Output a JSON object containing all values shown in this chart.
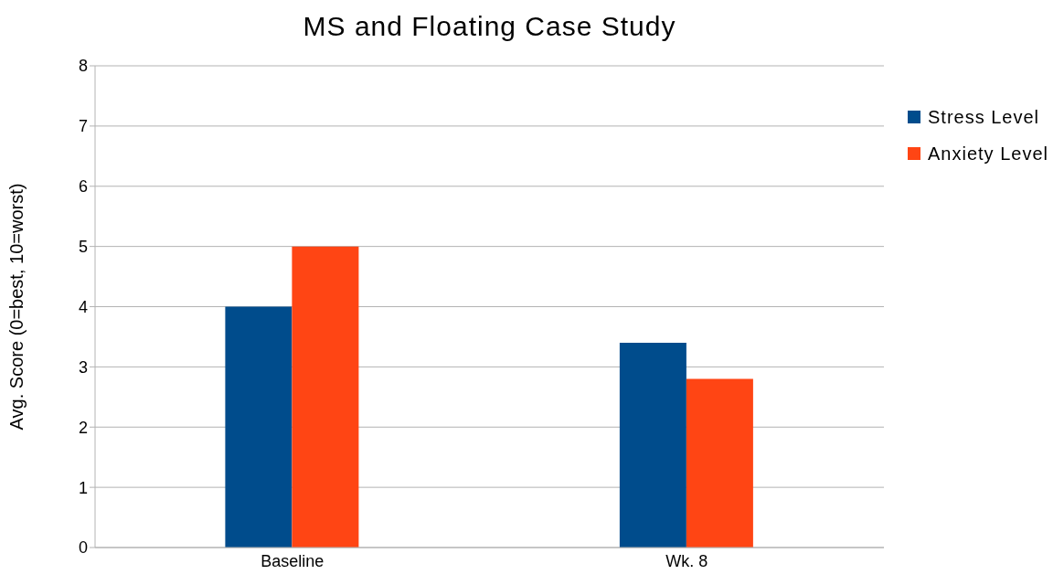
{
  "chart_data": {
    "type": "bar",
    "title": "MS and Floating Case Study",
    "ylabel": "Avg. Score (0=best, 10=worst)",
    "categories": [
      "Baseline",
      "Wk. 8"
    ],
    "series": [
      {
        "name": "Stress Level",
        "color": "#004c8c",
        "values": [
          4,
          3.4
        ]
      },
      {
        "name": "Anxiety Level",
        "color": "#ff4514",
        "values": [
          5,
          2.8
        ]
      }
    ],
    "ylim": [
      0,
      8
    ],
    "yticks": [
      0,
      1,
      2,
      3,
      4,
      5,
      6,
      7,
      8
    ],
    "grid": "y",
    "legend": "right"
  }
}
